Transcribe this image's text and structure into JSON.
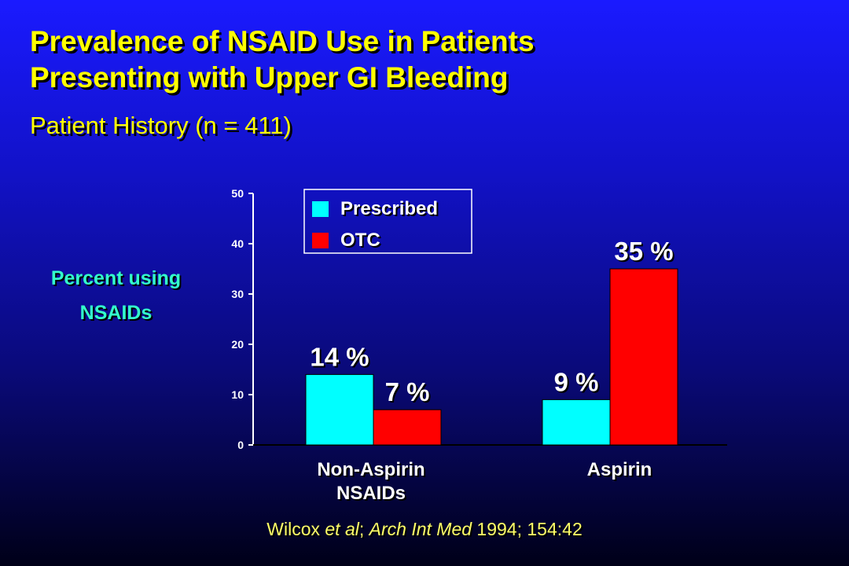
{
  "title": {
    "line1": "Prevalence of NSAID Use in Patients",
    "line2": "Presenting with Upper GI Bleeding"
  },
  "subtitle": "Patient History  (n = 411)",
  "colors": {
    "background": "#1414d2",
    "title": "#ffff00",
    "ylabel": "#33ffcc",
    "prescribed": "#00ffff",
    "otc": "#ff0000"
  },
  "chart_data": {
    "type": "bar",
    "title": "",
    "ylabel_lines": [
      "Percent using",
      "NSAIDs"
    ],
    "categories": [
      {
        "lines": [
          "Non-Aspirin",
          "NSAIDs"
        ]
      },
      {
        "lines": [
          "Aspirin"
        ]
      }
    ],
    "series": [
      {
        "name": "Prescribed",
        "values": [
          14,
          9
        ],
        "labels": [
          "14 %",
          "9 %"
        ],
        "color": "#00ffff"
      },
      {
        "name": "OTC",
        "values": [
          7,
          35
        ],
        "labels": [
          "7 %",
          "35 %"
        ],
        "color": "#ff0000"
      }
    ],
    "ylim": [
      0,
      50
    ],
    "yticks": [
      0,
      10,
      20,
      30,
      40,
      50
    ],
    "legend_position": "top-left",
    "grid": false
  },
  "citation": {
    "author": "Wilcox ",
    "etal": "et al",
    "sep": "; ",
    "journal": "Arch Int Med",
    "ref": " 1994; 154:42"
  }
}
